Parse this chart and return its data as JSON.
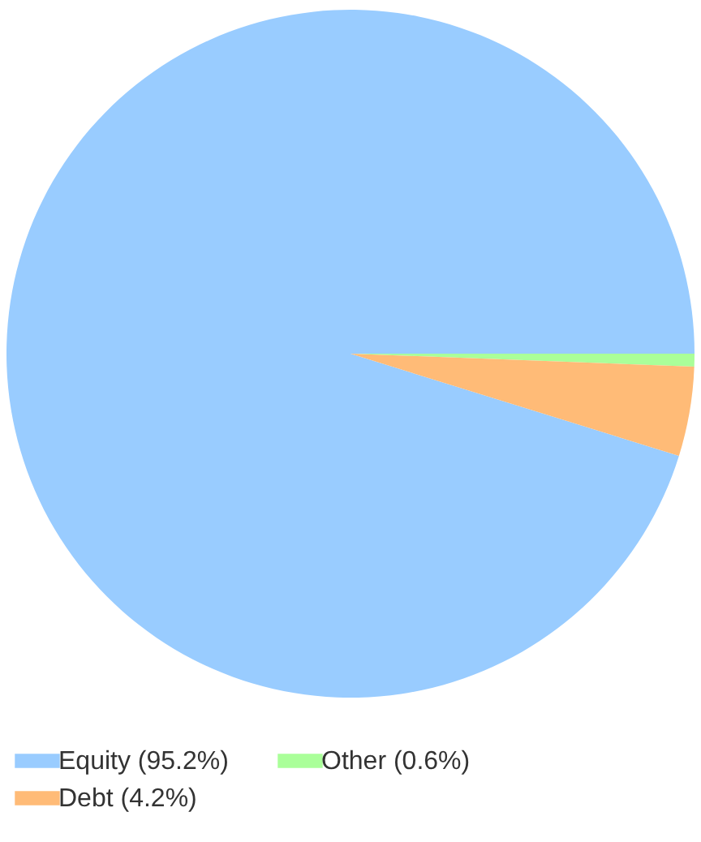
{
  "chart_data": {
    "type": "pie",
    "categories": [
      "Equity (95.2%)",
      "Other (0.6%)",
      "Debt (4.2%)"
    ],
    "values": [
      95.2,
      0.6,
      4.2
    ],
    "colors": [
      "#99ccff",
      "#aaff99",
      "#ffbb77"
    ],
    "legend": "bottom"
  }
}
